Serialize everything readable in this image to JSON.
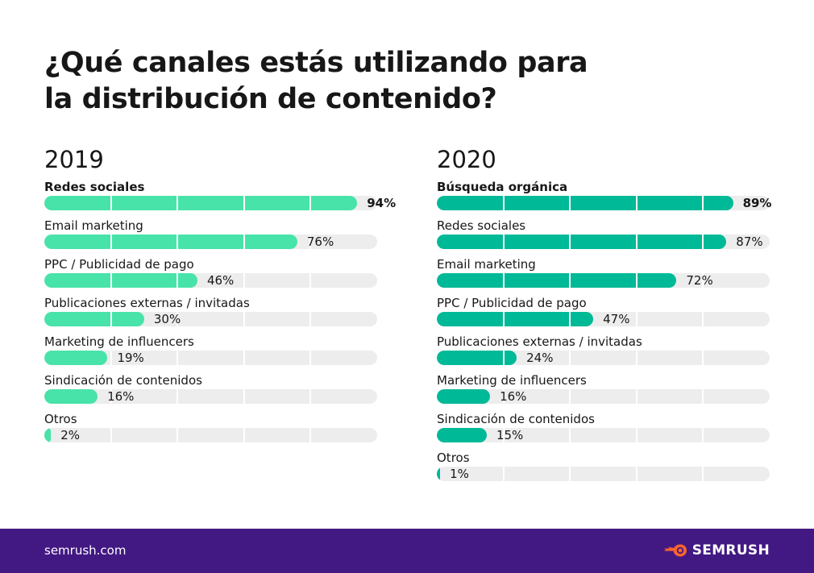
{
  "title_lines": [
    "¿Qué canales estás utilizando para",
    "la distribución de contenido?"
  ],
  "colors": {
    "bar_2019": "#48e3a8",
    "bar_2020": "#00b996",
    "track": "#ededed",
    "footer": "#421983",
    "logo_accent": "#ff642d"
  },
  "chart_data": [
    {
      "type": "bar",
      "title": "2019",
      "categories": [
        "Redes sociales",
        "Email marketing",
        "PPC / Publicidad de pago",
        "Publicaciones externas / invitadas",
        "Marketing de influencers",
        "Sindicación de contenidos",
        "Otros"
      ],
      "values": [
        94,
        76,
        46,
        30,
        19,
        16,
        2
      ],
      "value_labels": [
        "94%",
        "76%",
        "46%",
        "30%",
        "19%",
        "16%",
        "2%"
      ],
      "xlim": [
        0,
        100
      ],
      "orientation": "horizontal",
      "grid": true
    },
    {
      "type": "bar",
      "title": "2020",
      "categories": [
        "Búsqueda orgánica",
        "Redes sociales",
        "Email marketing",
        "PPC / Publicidad de pago",
        "Publicaciones externas / invitadas",
        "Marketing de influencers",
        "Sindicación de contenidos",
        "Otros"
      ],
      "values": [
        89,
        87,
        72,
        47,
        24,
        16,
        15,
        1
      ],
      "value_labels": [
        "89%",
        "87%",
        "72%",
        "47%",
        "24%",
        "16%",
        "15%",
        "1%"
      ],
      "xlim": [
        0,
        100
      ],
      "orientation": "horizontal",
      "grid": true
    }
  ],
  "footer": {
    "site": "semrush.com",
    "brand": "SEMRUSH",
    "logo_icon": "semrush-fire-icon"
  }
}
